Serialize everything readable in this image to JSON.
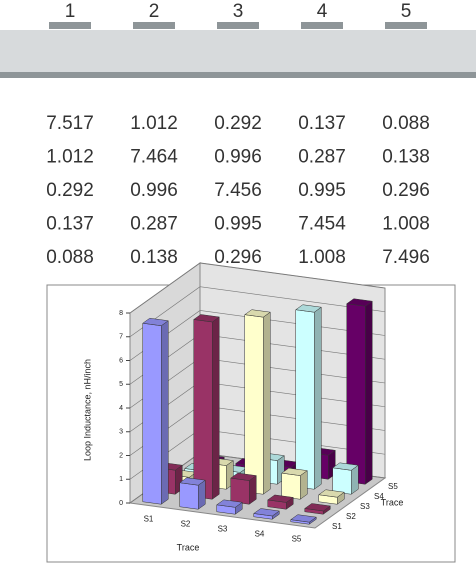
{
  "table": {
    "headers": [
      "1",
      "2",
      "3",
      "4",
      "5"
    ],
    "rows": [
      [
        "7.517",
        "1.012",
        "0.292",
        "0.137",
        "0.088"
      ],
      [
        "1.012",
        "7.464",
        "0.996",
        "0.287",
        "0.138"
      ],
      [
        "0.292",
        "0.996",
        "7.456",
        "0.995",
        "0.296"
      ],
      [
        "0.137",
        "0.287",
        "0.995",
        "7.454",
        "1.008"
      ],
      [
        "0.088",
        "0.138",
        "0.296",
        "1.008",
        "7.496"
      ]
    ]
  },
  "chart_data": {
    "type": "bar3d",
    "y_label": "Loop Inductance, nH/inch",
    "x_label": "Trace",
    "z_label": "Trace",
    "categories": [
      "S1",
      "S2",
      "S3",
      "S4",
      "S5"
    ],
    "series": [
      {
        "name": "S1",
        "color": "#9999ff",
        "values": [
          7.517,
          1.012,
          0.292,
          0.137,
          0.088
        ]
      },
      {
        "name": "S2",
        "color": "#993366",
        "values": [
          1.012,
          7.464,
          0.996,
          0.287,
          0.138
        ]
      },
      {
        "name": "S3",
        "color": "#ffffcc",
        "values": [
          0.292,
          0.996,
          7.456,
          0.995,
          0.296
        ]
      },
      {
        "name": "S4",
        "color": "#ccffff",
        "values": [
          0.137,
          0.287,
          0.995,
          7.454,
          1.008
        ]
      },
      {
        "name": "S5",
        "color": "#660066",
        "values": [
          0.088,
          0.138,
          0.296,
          1.008,
          7.496
        ]
      }
    ],
    "ylim": [
      0,
      8
    ],
    "yticks": [
      0,
      1,
      2,
      3,
      4,
      5,
      6,
      7,
      8
    ],
    "grid": true
  }
}
